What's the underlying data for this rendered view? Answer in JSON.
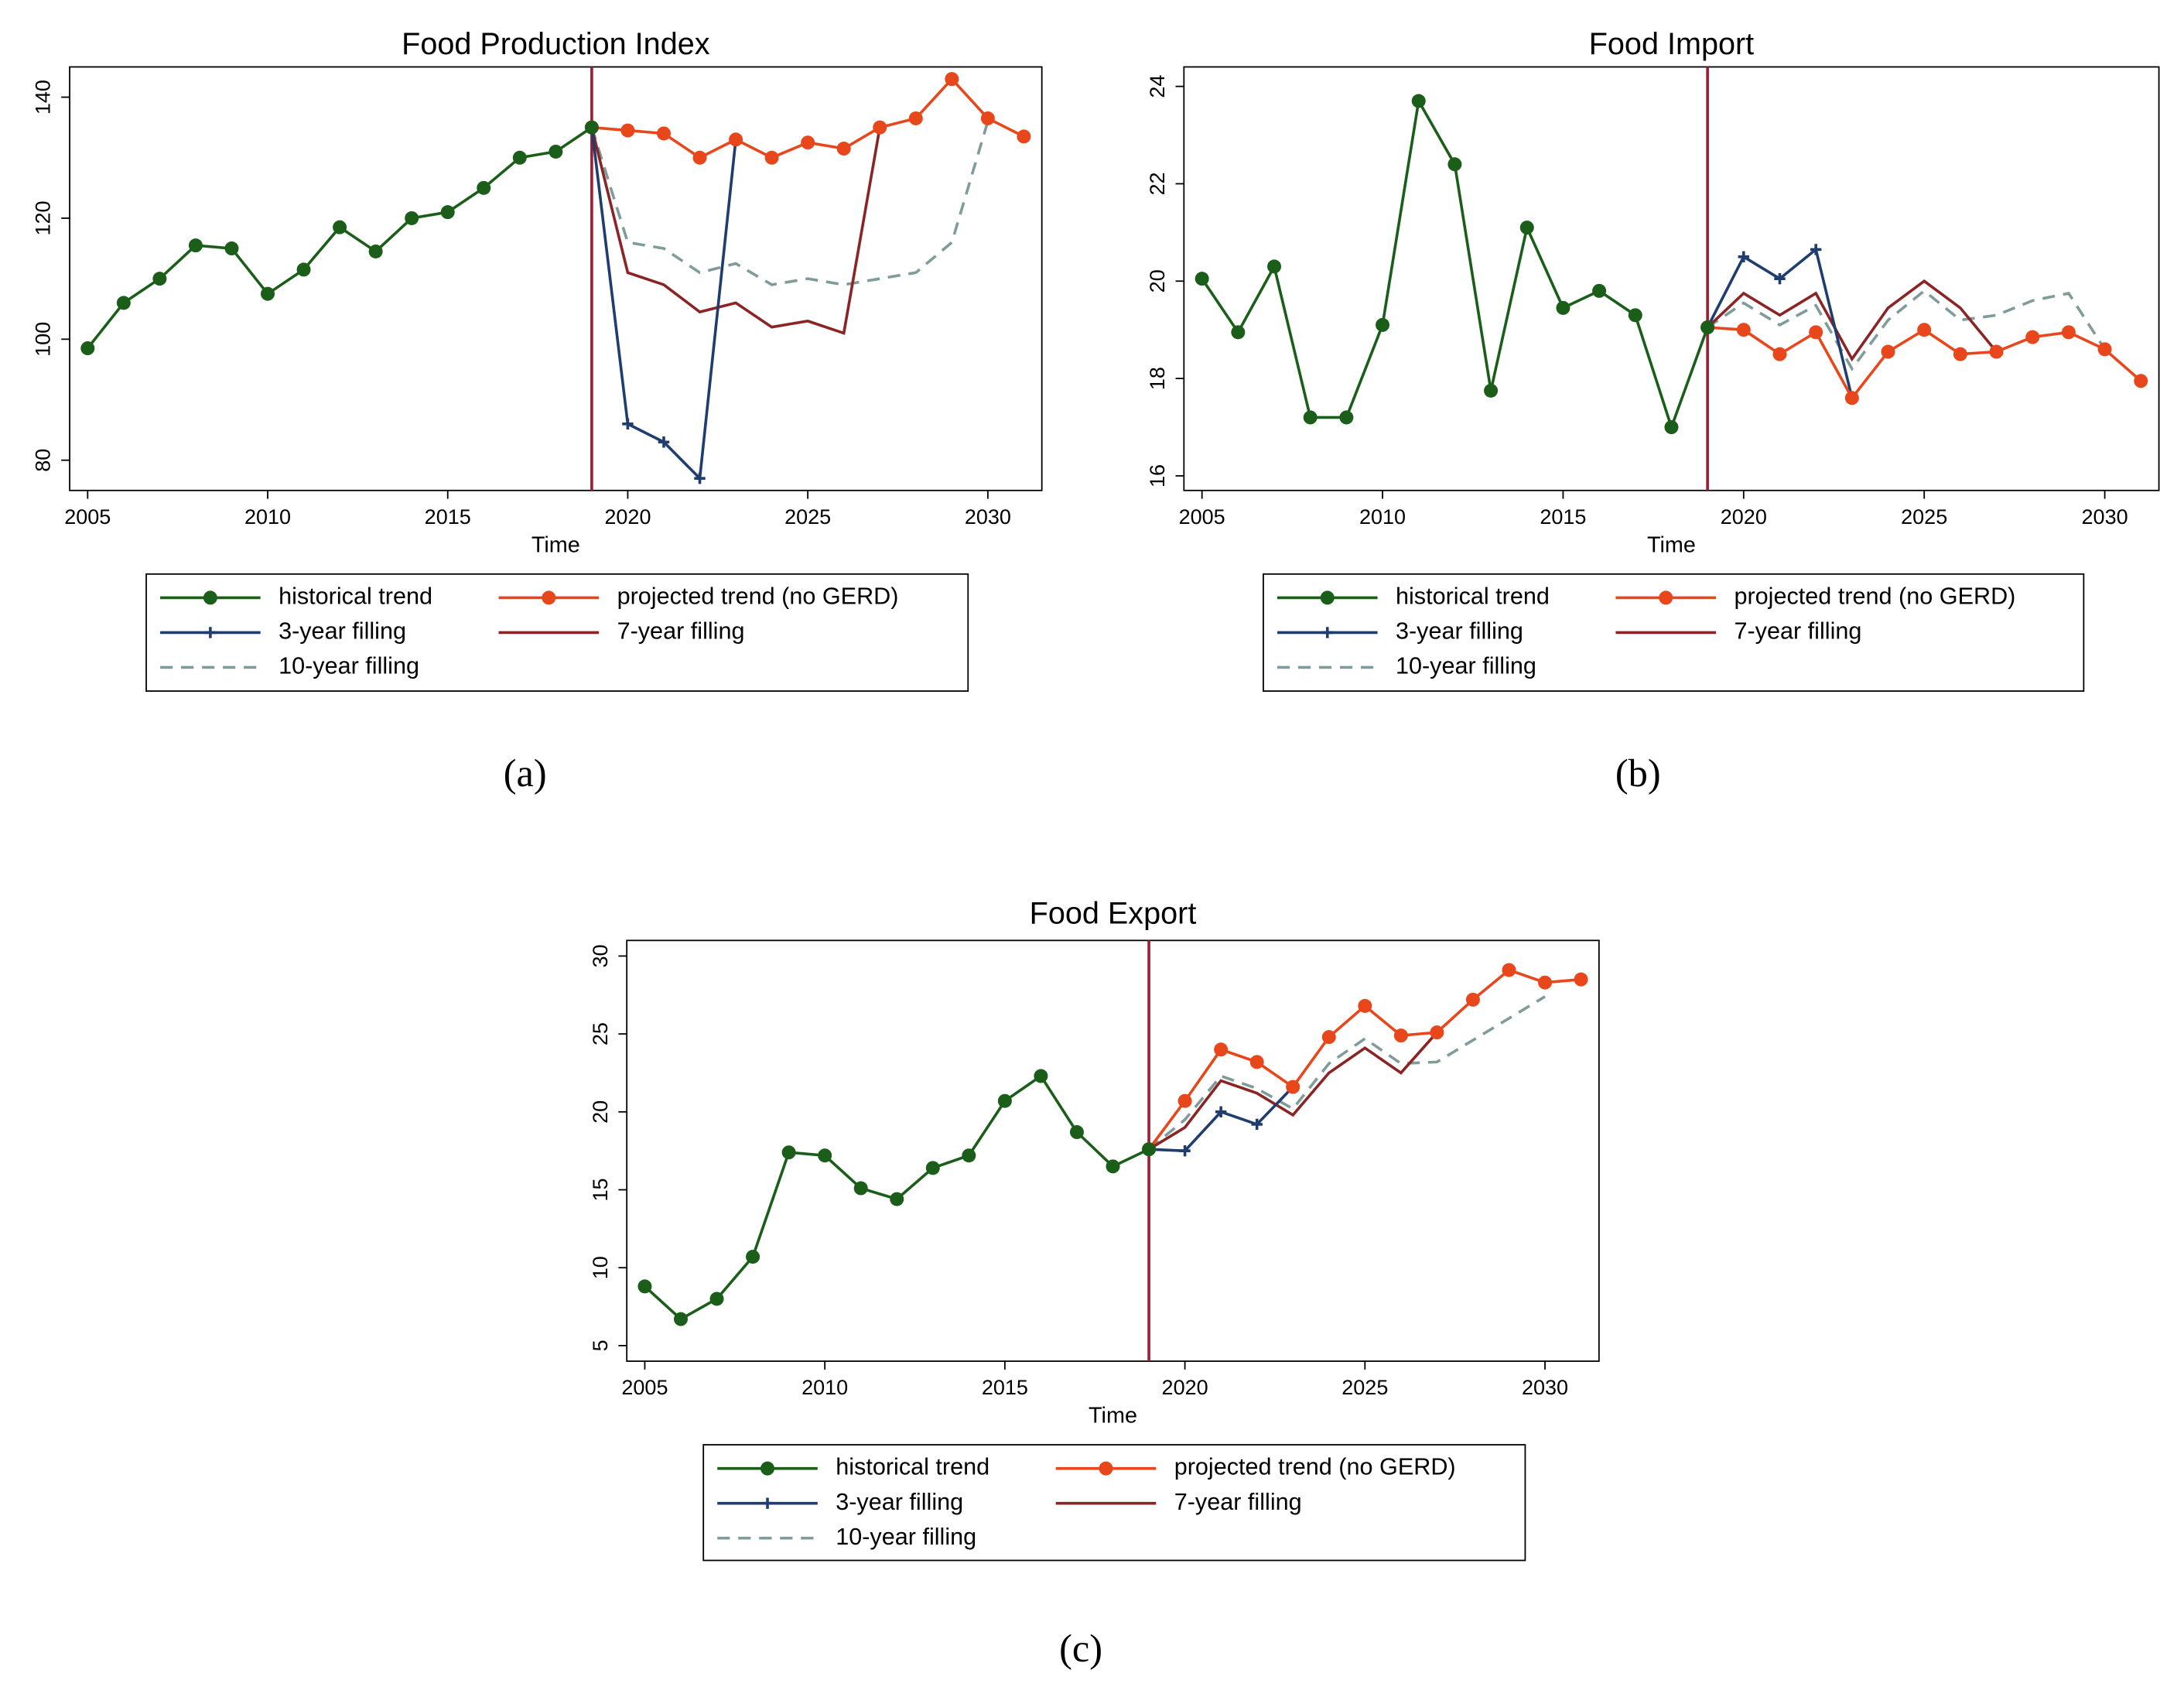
{
  "chart_data": [
    {
      "type": "line",
      "title": "Food Production Index",
      "x_label": "Time",
      "caption": "(a)",
      "x": [
        2005,
        2006,
        2007,
        2008,
        2009,
        2010,
        2011,
        2012,
        2013,
        2014,
        2015,
        2016,
        2017,
        2018,
        2019,
        2020,
        2021,
        2022,
        2023,
        2024,
        2025,
        2026,
        2027,
        2028,
        2029,
        2030,
        2031
      ],
      "xlim": [
        2004.5,
        2031.5
      ],
      "xticks": [
        2005,
        2010,
        2015,
        2020,
        2025,
        2030
      ],
      "ylim": [
        75,
        145
      ],
      "yticks": [
        80,
        100,
        120,
        140
      ],
      "vline": 2019,
      "series": [
        {
          "name": "historical trend",
          "color": "#1a5e1a",
          "marker": "circle",
          "dashed": false,
          "values": [
            98.5,
            106,
            110,
            115.5,
            115,
            107.5,
            111.5,
            118.5,
            114.5,
            120,
            121,
            125,
            130,
            131,
            135,
            null,
            null,
            null,
            null,
            null,
            null,
            null,
            null,
            null,
            null,
            null,
            null
          ]
        },
        {
          "name": "projected trend (no GERD)",
          "color": "#e8471c",
          "marker": "circle",
          "dashed": false,
          "values": [
            null,
            null,
            null,
            null,
            null,
            null,
            null,
            null,
            null,
            null,
            null,
            null,
            null,
            null,
            135,
            134.5,
            134,
            130,
            133,
            130,
            132.5,
            131.5,
            135,
            136.5,
            143,
            136.5,
            133.5
          ]
        },
        {
          "name": "3-year filling",
          "color": "#1f3d6e",
          "marker": "plus",
          "dashed": false,
          "values": [
            null,
            null,
            null,
            null,
            null,
            null,
            null,
            null,
            null,
            null,
            null,
            null,
            null,
            null,
            135,
            86,
            83,
            77,
            133,
            null,
            null,
            null,
            null,
            null,
            null,
            null,
            null
          ]
        },
        {
          "name": "7-year filling",
          "color": "#8b2525",
          "marker": "none",
          "dashed": false,
          "values": [
            null,
            null,
            null,
            null,
            null,
            null,
            null,
            null,
            null,
            null,
            null,
            null,
            null,
            null,
            135,
            111,
            109,
            104.5,
            106,
            102,
            103,
            101,
            135,
            null,
            null,
            null,
            null
          ]
        },
        {
          "name": "10-year filling",
          "color": "#7f9c9a",
          "marker": "none",
          "dashed": true,
          "values": [
            null,
            null,
            null,
            null,
            null,
            null,
            null,
            null,
            null,
            null,
            null,
            null,
            null,
            null,
            135,
            116,
            115,
            111,
            112.5,
            109,
            110,
            109,
            110,
            111,
            116,
            136,
            null
          ]
        }
      ]
    },
    {
      "type": "line",
      "title": "Food Import",
      "x_label": "Time",
      "caption": "(b)",
      "x": [
        2005,
        2006,
        2007,
        2008,
        2009,
        2010,
        2011,
        2012,
        2013,
        2014,
        2015,
        2016,
        2017,
        2018,
        2019,
        2020,
        2021,
        2022,
        2023,
        2024,
        2025,
        2026,
        2027,
        2028,
        2029,
        2030,
        2031
      ],
      "xlim": [
        2004.5,
        2031.5
      ],
      "xticks": [
        2005,
        2010,
        2015,
        2020,
        2025,
        2030
      ],
      "ylim": [
        15.7,
        24.4
      ],
      "yticks": [
        16,
        18,
        20,
        22,
        24
      ],
      "vline": 2019,
      "series": [
        {
          "name": "historical trend",
          "color": "#1a5e1a",
          "marker": "circle",
          "dashed": false,
          "values": [
            20.05,
            18.95,
            20.3,
            17.2,
            17.2,
            19.1,
            23.7,
            22.4,
            17.75,
            21.1,
            19.45,
            19.8,
            19.3,
            17.0,
            19.05,
            null,
            null,
            null,
            null,
            null,
            null,
            null,
            null,
            null,
            null,
            null,
            null
          ]
        },
        {
          "name": "projected trend (no GERD)",
          "color": "#e8471c",
          "marker": "circle",
          "dashed": false,
          "values": [
            null,
            null,
            null,
            null,
            null,
            null,
            null,
            null,
            null,
            null,
            null,
            null,
            null,
            null,
            19.05,
            19.0,
            18.5,
            18.95,
            17.6,
            18.55,
            19.0,
            18.5,
            18.55,
            18.85,
            18.95,
            18.6,
            17.95
          ]
        },
        {
          "name": "3-year filling",
          "color": "#1f3d6e",
          "marker": "plus",
          "dashed": false,
          "values": [
            null,
            null,
            null,
            null,
            null,
            null,
            null,
            null,
            null,
            null,
            null,
            null,
            null,
            null,
            19.05,
            20.5,
            20.05,
            20.65,
            17.6,
            null,
            null,
            null,
            null,
            null,
            null,
            null,
            null
          ]
        },
        {
          "name": "7-year filling",
          "color": "#8b2525",
          "marker": "none",
          "dashed": false,
          "values": [
            null,
            null,
            null,
            null,
            null,
            null,
            null,
            null,
            null,
            null,
            null,
            null,
            null,
            null,
            19.05,
            19.75,
            19.3,
            19.75,
            18.4,
            19.45,
            20.0,
            19.45,
            18.55,
            null,
            null,
            null,
            null
          ]
        },
        {
          "name": "10-year filling",
          "color": "#7f9c9a",
          "marker": "none",
          "dashed": true,
          "values": [
            null,
            null,
            null,
            null,
            null,
            null,
            null,
            null,
            null,
            null,
            null,
            null,
            null,
            null,
            19.05,
            19.55,
            19.1,
            19.5,
            18.2,
            19.2,
            19.8,
            19.2,
            19.3,
            19.6,
            19.75,
            18.6,
            null
          ]
        }
      ]
    },
    {
      "type": "line",
      "title": "Food Export",
      "x_label": "Time",
      "caption": "(c)",
      "x": [
        2005,
        2006,
        2007,
        2008,
        2009,
        2010,
        2011,
        2012,
        2013,
        2014,
        2015,
        2016,
        2017,
        2018,
        2019,
        2020,
        2021,
        2022,
        2023,
        2024,
        2025,
        2026,
        2027,
        2028,
        2029,
        2030,
        2031
      ],
      "xlim": [
        2004.5,
        2031.5
      ],
      "xticks": [
        2005,
        2010,
        2015,
        2020,
        2025,
        2030
      ],
      "ylim": [
        4,
        31
      ],
      "yticks": [
        5,
        10,
        15,
        20,
        25,
        30
      ],
      "vline": 2019,
      "series": [
        {
          "name": "historical trend",
          "color": "#1a5e1a",
          "marker": "circle",
          "dashed": false,
          "values": [
            8.8,
            6.7,
            8.0,
            10.7,
            17.4,
            17.2,
            15.1,
            14.4,
            16.4,
            17.2,
            20.7,
            22.3,
            18.7,
            16.5,
            17.6,
            null,
            null,
            null,
            null,
            null,
            null,
            null,
            null,
            null,
            null,
            null,
            null
          ]
        },
        {
          "name": "projected trend (no GERD)",
          "color": "#e8471c",
          "marker": "circle",
          "dashed": false,
          "values": [
            null,
            null,
            null,
            null,
            null,
            null,
            null,
            null,
            null,
            null,
            null,
            null,
            null,
            null,
            17.6,
            20.7,
            24.0,
            23.2,
            21.6,
            24.8,
            26.8,
            24.9,
            25.1,
            27.2,
            29.1,
            28.3,
            28.5
          ]
        },
        {
          "name": "3-year filling",
          "color": "#1f3d6e",
          "marker": "plus",
          "dashed": false,
          "values": [
            null,
            null,
            null,
            null,
            null,
            null,
            null,
            null,
            null,
            null,
            null,
            null,
            null,
            null,
            17.6,
            17.5,
            20.0,
            19.2,
            21.6,
            null,
            null,
            null,
            null,
            null,
            null,
            null,
            null
          ]
        },
        {
          "name": "7-year filling",
          "color": "#8b2525",
          "marker": "none",
          "dashed": false,
          "values": [
            null,
            null,
            null,
            null,
            null,
            null,
            null,
            null,
            null,
            null,
            null,
            null,
            null,
            null,
            17.6,
            19.0,
            22.0,
            21.2,
            19.8,
            22.5,
            24.1,
            22.5,
            25.1,
            null,
            null,
            null,
            null
          ]
        },
        {
          "name": "10-year filling",
          "color": "#7f9c9a",
          "marker": "none",
          "dashed": true,
          "values": [
            null,
            null,
            null,
            null,
            null,
            null,
            null,
            null,
            null,
            null,
            null,
            null,
            null,
            null,
            17.6,
            19.5,
            22.3,
            21.5,
            20.2,
            23.1,
            24.7,
            23.1,
            23.2,
            24.6,
            26.0,
            27.4,
            null
          ]
        }
      ]
    }
  ]
}
